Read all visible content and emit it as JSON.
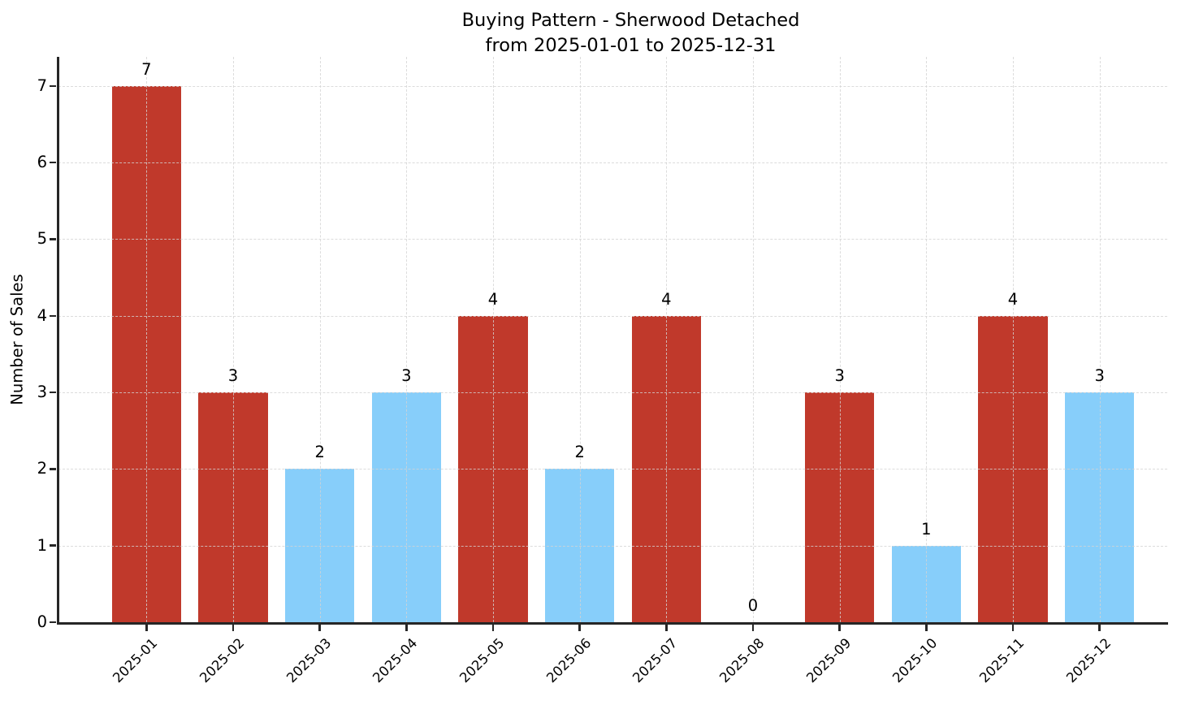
{
  "header": {
    "title": "Buying Pattern - Sherwood Detached",
    "subtitle": "from 2025-01-01 to 2025-12-31"
  },
  "chart_data": {
    "type": "bar",
    "title": "Buying Pattern - Sherwood Detached",
    "subtitle": "from 2025-01-01 to 2025-12-31",
    "xlabel": "",
    "ylabel": "Number of Sales",
    "categories": [
      "2025-01",
      "2025-02",
      "2025-03",
      "2025-04",
      "2025-05",
      "2025-06",
      "2025-07",
      "2025-08",
      "2025-09",
      "2025-10",
      "2025-11",
      "2025-12"
    ],
    "values": [
      7,
      3,
      2,
      3,
      4,
      2,
      4,
      0,
      3,
      1,
      4,
      3
    ],
    "bar_colors": [
      "#c0392b",
      "#c0392b",
      "#87cefa",
      "#87cefa",
      "#c0392b",
      "#87cefa",
      "#c0392b",
      null,
      "#c0392b",
      "#87cefa",
      "#c0392b",
      "#87cefa"
    ],
    "value_labels": [
      "7",
      "3",
      "2",
      "3",
      "4",
      "2",
      "4",
      "0",
      "3",
      "1",
      "4",
      "3"
    ],
    "yticks": [
      0,
      1,
      2,
      3,
      4,
      5,
      6,
      7
    ],
    "ylim": [
      0,
      7.38
    ],
    "grid": true,
    "grid_style": "dashed",
    "legend": "none",
    "palette": {
      "red": "#c0392b",
      "light_blue": "#87cefa",
      "spine": "#262626",
      "grid": "#d3d3d3"
    },
    "x_tick_rotation_deg": 45
  }
}
